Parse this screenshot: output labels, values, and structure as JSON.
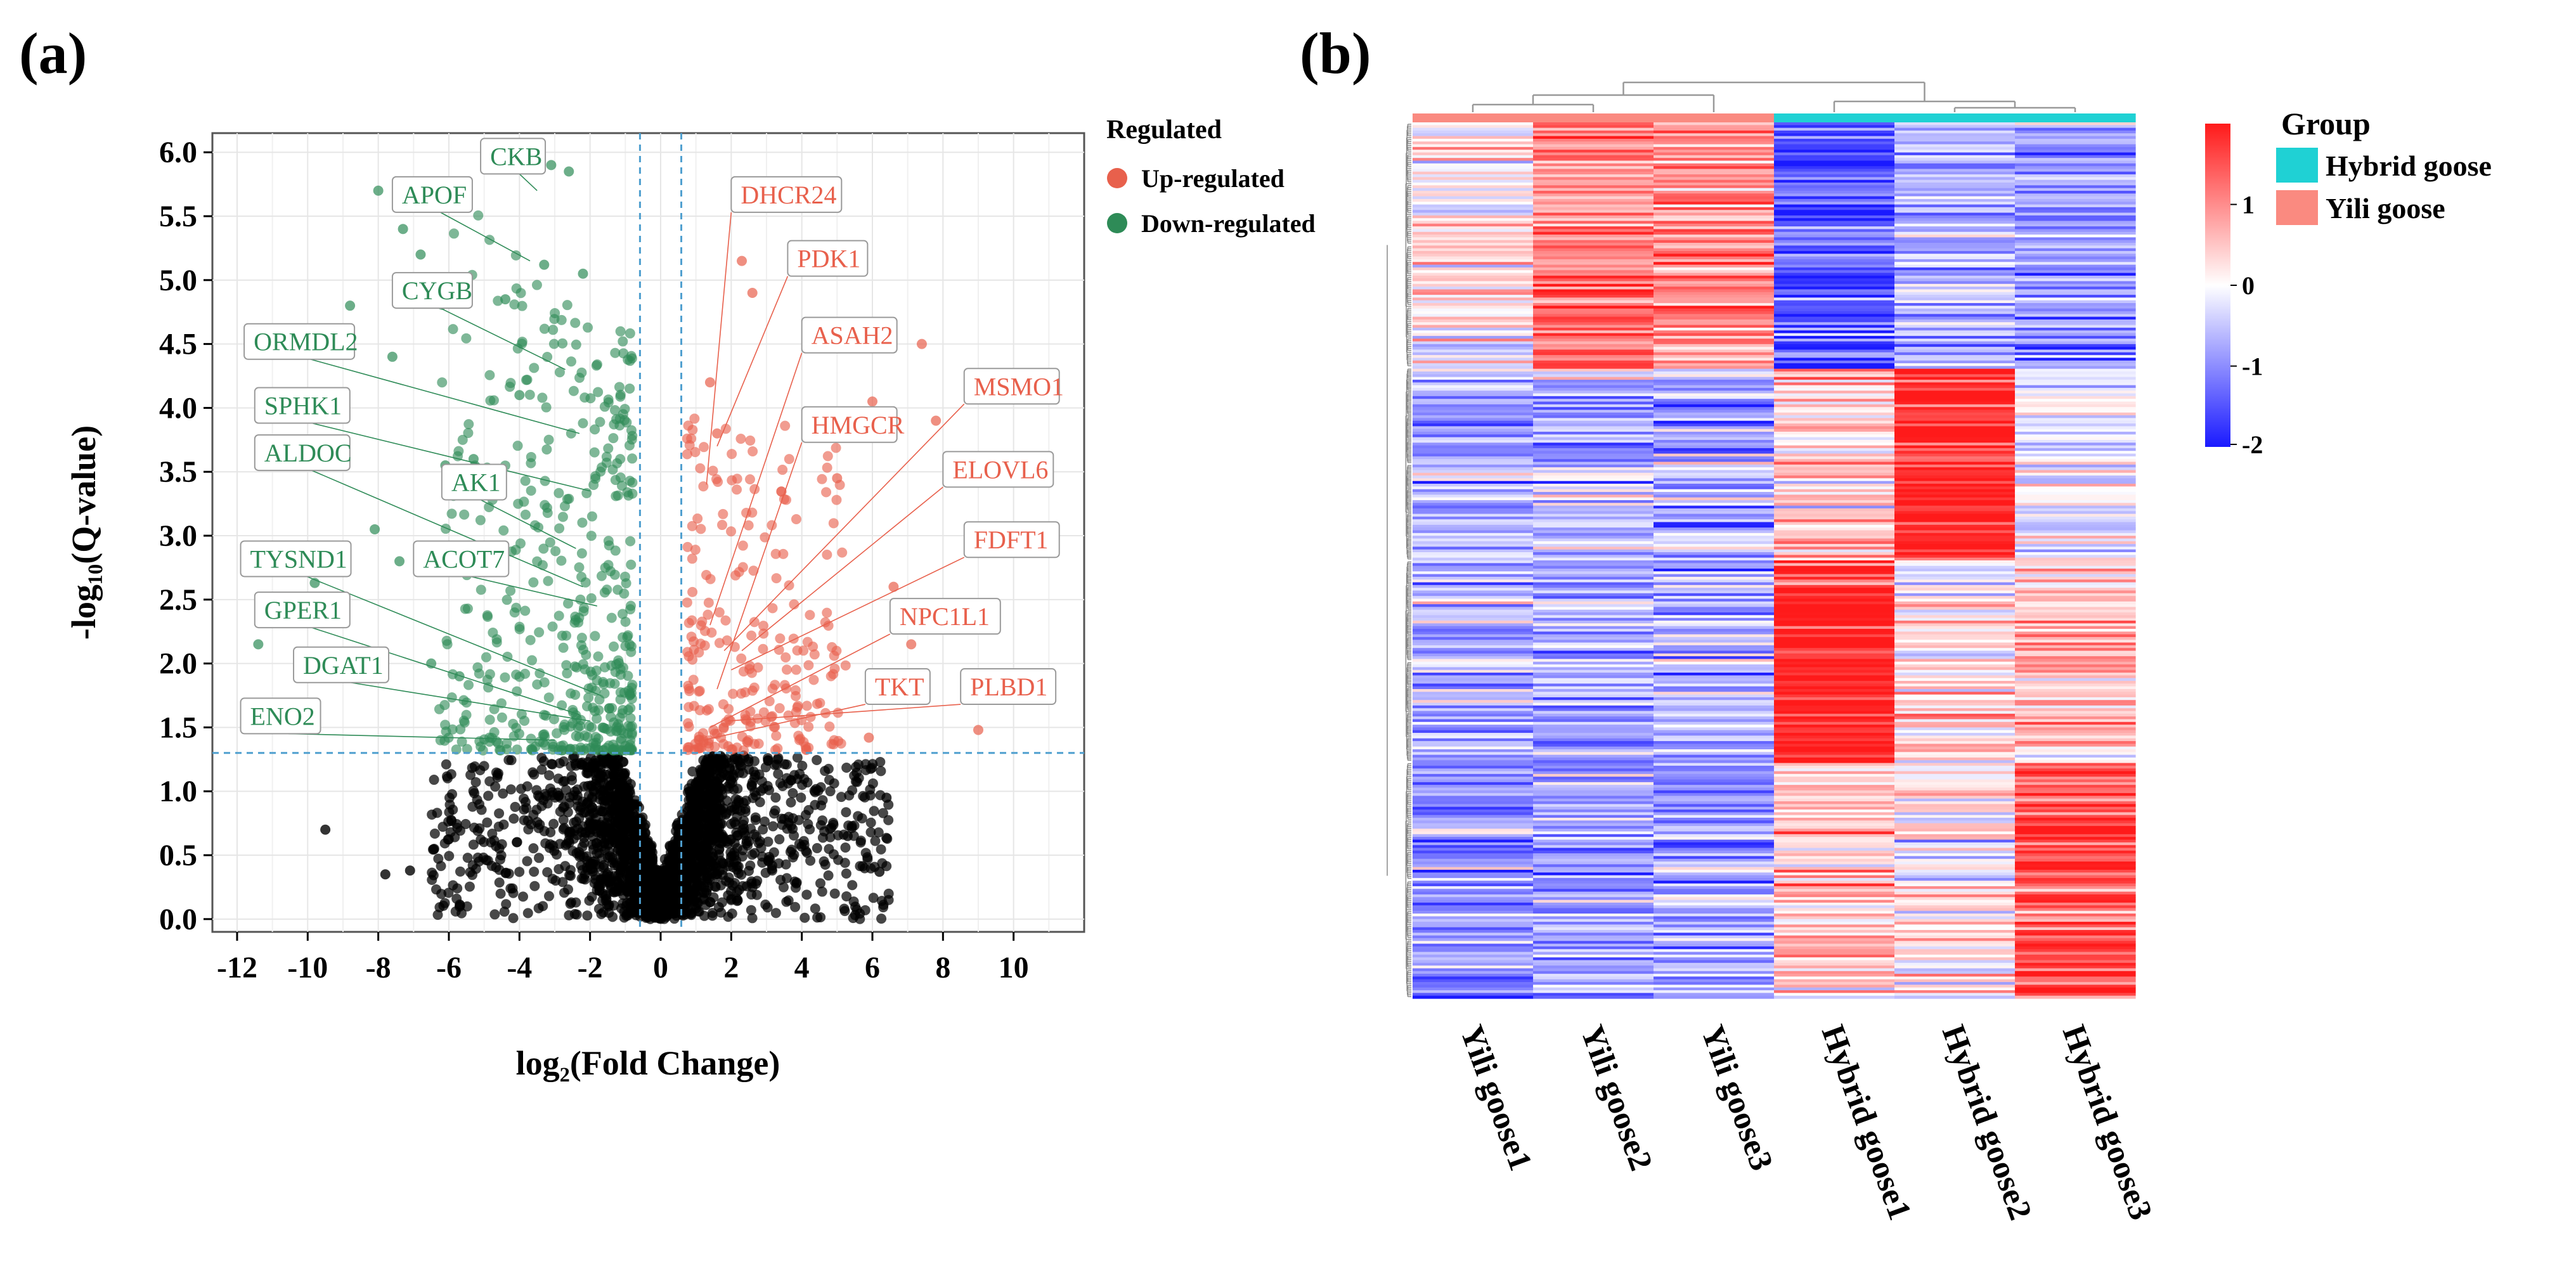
{
  "panels": {
    "a": {
      "label_open": "(",
      "letter": "a",
      "label_close": ")"
    },
    "b": {
      "label_open": "(",
      "letter": "b",
      "label_close": ")"
    }
  },
  "chart_data": [
    {
      "type": "scatter",
      "title": "",
      "xlabel": "log₂(Fold Change)",
      "ylabel": "-log₁₀(Q-value)",
      "xlim": [
        -12.7,
        12
      ],
      "ylim": [
        -0.1,
        6.15
      ],
      "xticks": [
        -12,
        -10,
        -8,
        -6,
        -4,
        -2,
        0,
        2,
        4,
        6,
        8,
        10
      ],
      "yticks": [
        0.0,
        0.5,
        1.0,
        1.5,
        2.0,
        2.5,
        3.0,
        3.5,
        4.0,
        4.5,
        5.0,
        5.5,
        6.0
      ],
      "grid": true,
      "thresholds": {
        "x": [
          -0.585,
          0.585
        ],
        "y": 1.3
      },
      "legend": {
        "title": "Regulated",
        "position": "right",
        "entries": [
          {
            "label": "Up-regulated",
            "color": "#e8604c"
          },
          {
            "label": "Down-regulated",
            "color": "#2e8b57"
          }
        ]
      },
      "colors": {
        "up": "#e8604c",
        "down": "#2e8b57",
        "ns": "#000000",
        "up_label": "#e8604c",
        "down_label": "#2e8b57",
        "threshold": "#4f9fcf"
      },
      "labeled_points": [
        {
          "gene": "CKB",
          "x": -3.5,
          "y": 5.7,
          "group": "down"
        },
        {
          "gene": "APOF",
          "x": -3.7,
          "y": 5.15,
          "group": "down"
        },
        {
          "gene": "CYGB",
          "x": -2.7,
          "y": 4.3,
          "group": "down"
        },
        {
          "gene": "ORMDL2",
          "x": -2.3,
          "y": 3.8,
          "group": "down"
        },
        {
          "gene": "SPHK1",
          "x": -2.0,
          "y": 3.35,
          "group": "down"
        },
        {
          "gene": "ALDOC",
          "x": -2.2,
          "y": 2.6,
          "group": "down"
        },
        {
          "gene": "AK1",
          "x": -2.4,
          "y": 2.9,
          "group": "down"
        },
        {
          "gene": "ACOT7",
          "x": -1.8,
          "y": 2.45,
          "group": "down"
        },
        {
          "gene": "TYSND1",
          "x": -1.7,
          "y": 1.75,
          "group": "down"
        },
        {
          "gene": "GPER1",
          "x": -2.3,
          "y": 1.6,
          "group": "down"
        },
        {
          "gene": "DGAT1",
          "x": -2.0,
          "y": 1.55,
          "group": "down"
        },
        {
          "gene": "ENO2",
          "x": -3.0,
          "y": 1.4,
          "group": "down"
        },
        {
          "gene": "DHCR24",
          "x": 1.3,
          "y": 3.4,
          "group": "up"
        },
        {
          "gene": "PDK1",
          "x": 1.6,
          "y": 3.7,
          "group": "up"
        },
        {
          "gene": "ASAH2",
          "x": 1.4,
          "y": 2.3,
          "group": "up"
        },
        {
          "gene": "MSMO1",
          "x": 1.8,
          "y": 2.1,
          "group": "up"
        },
        {
          "gene": "HMGCR",
          "x": 1.6,
          "y": 1.8,
          "group": "up"
        },
        {
          "gene": "ELOVL6",
          "x": 2.3,
          "y": 2.1,
          "group": "up"
        },
        {
          "gene": "FDFT1",
          "x": 2.0,
          "y": 1.95,
          "group": "up"
        },
        {
          "gene": "NPC1L1",
          "x": 1.4,
          "y": 1.5,
          "group": "up"
        },
        {
          "gene": "TKT",
          "x": 1.2,
          "y": 1.4,
          "group": "up"
        },
        {
          "gene": "PLBD1",
          "x": 1.9,
          "y": 1.55,
          "group": "up"
        }
      ]
    },
    {
      "type": "heatmap",
      "title": "",
      "columns": [
        "Yili goose1",
        "Yili goose2",
        "Yili goose3",
        "Hybrid goose1",
        "Hybrid goose2",
        "Hybrid goose3"
      ],
      "column_groups": [
        "Yili goose",
        "Yili goose",
        "Yili goose",
        "Hybrid goose",
        "Hybrid goose",
        "Hybrid goose"
      ],
      "group_legend": {
        "title": "Group",
        "entries": [
          {
            "label": "Hybrid goose",
            "color": "#1fd1d4"
          },
          {
            "label": "Yili goose",
            "color": "#fa8a80"
          }
        ]
      },
      "colorbar": {
        "min": -2,
        "max": 2,
        "ticks": [
          1,
          0,
          -1,
          -2
        ],
        "tick_labels": [
          "1",
          "0",
          "-1",
          "-2"
        ],
        "colors": [
          "#1a1aff",
          "#ffffff",
          "#ff1a1a"
        ]
      },
      "row_clusters": [
        {
          "fraction": 0.28,
          "values": [
            0.2,
            1.1,
            1.0,
            -1.5,
            -0.6,
            -0.9
          ]
        },
        {
          "fraction": 0.22,
          "values": [
            -0.7,
            -0.6,
            -0.8,
            0.4,
            1.9,
            -0.2
          ]
        },
        {
          "fraction": 0.23,
          "values": [
            -0.6,
            -0.7,
            -0.7,
            2.0,
            0.3,
            0.6
          ]
        },
        {
          "fraction": 0.27,
          "values": [
            -0.9,
            -0.8,
            -0.8,
            0.5,
            0.2,
            1.6
          ]
        }
      ]
    }
  ]
}
